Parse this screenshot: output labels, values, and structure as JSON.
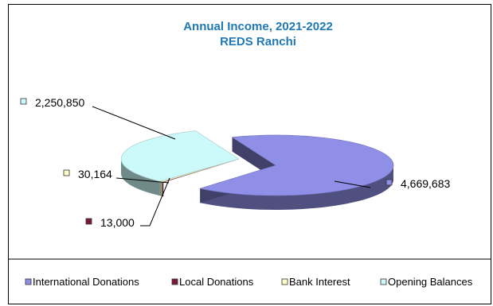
{
  "chart_data": {
    "type": "pie",
    "title": "Annual Income, 2021-2022",
    "subtitle": "REDS Ranchi",
    "categories": [
      "International Donations",
      "Local Donations",
      "Bank Interest",
      "Opening Balances"
    ],
    "values": [
      4669683,
      13000,
      30164,
      2250850
    ],
    "value_labels": [
      "4,669,683",
      "13,000",
      "30,164",
      "2,250,850"
    ],
    "colors": [
      "#8f8fe8",
      "#7a1a3a",
      "#ffffc8",
      "#ccfafa"
    ],
    "legend_position": "bottom",
    "exploded_slice": "International Donations",
    "three_d": true
  }
}
